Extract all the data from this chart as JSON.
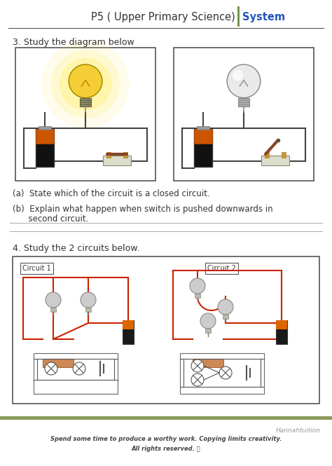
{
  "title_left": "P5 ( Upper Primary Science)",
  "title_right": "System",
  "title_sep_color": "#6b8c3e",
  "header_line_color": "#555555",
  "q3_label": "3. Study the diagram below",
  "qa_text": "(a)  State which of the circuit is a closed circuit.",
  "qb_line1": "(b)  Explain what happen when switch is pushed downwards in",
  "qb_line2": "      second circuit.",
  "q4_label": "4. Study the 2 circuits below.",
  "circuit1_label": "Circuit 1",
  "circuit2_label": "Circuit 2",
  "footer_brand": "Hannahtuition",
  "footer_line1": "Spend some time to produce a worthy work. Copying limits creativity.",
  "footer_line2": "All rights reserved. ⒪",
  "footer_bar_color": "#8a9a5b",
  "bg_color": "#ffffff",
  "text_color": "#333333",
  "blue_color": "#2255bb",
  "answer_line_color": "#aaaaaa",
  "box_color": "#555555",
  "wire_color": "#cc2200",
  "battery_dark": "#222222",
  "battery_orange": "#dd6600",
  "bulb_on_color": "#eecc44",
  "bulb_off_color": "#cccccc",
  "switch_color": "#996633"
}
